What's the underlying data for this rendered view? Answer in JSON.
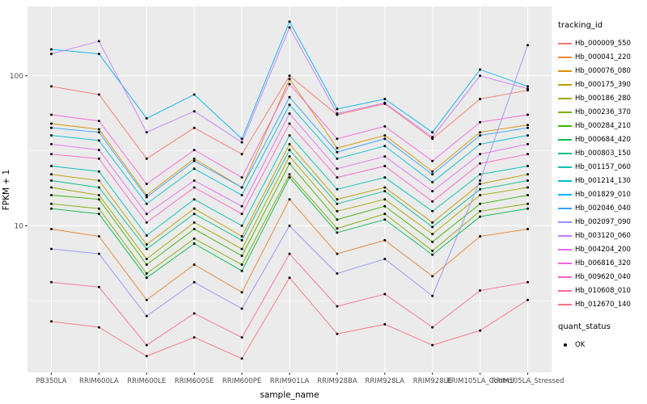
{
  "figure": {
    "background": "#FFFFFF",
    "panel_color": "#EBEBEB",
    "grid_major_color": "#FFFFFF",
    "grid_minor_color": "#FFFFFF",
    "tick_color": "#333333",
    "tick_label_color": "#4D4D4D",
    "point_color": "#000000"
  },
  "chart_data": {
    "type": "line",
    "x_label": "sample_name",
    "y_label": "FPKM + 1",
    "y_scale": "log10",
    "ylim": [
      1.05,
      290
    ],
    "y_ticks": [
      10,
      100
    ],
    "y_minor": [
      3.162,
      31.62
    ],
    "legend_title": "tracking_id",
    "quant_legend_title": "quant_status",
    "quant_items": [
      "OK"
    ],
    "legend_position": "right",
    "grid": true,
    "categories": [
      "PB350LA",
      "RRIM600LA",
      "RRIM600LE",
      "RRIM600SE",
      "RRIM600PE",
      "RRIM901LA",
      "RRIM928BA",
      "RRIM928LA",
      "RRIM928LE",
      "RRIM105LA_Control",
      "RRIM105LA_Stressed"
    ],
    "series": [
      {
        "name": "Hb_000009_550",
        "color": "#F8766D",
        "values": [
          85,
          75,
          28,
          45,
          30,
          100,
          55,
          65,
          38,
          70,
          80
        ]
      },
      {
        "name": "Hb_000041_220",
        "color": "#EA8331",
        "values": [
          9.5,
          8.5,
          3.2,
          5.5,
          3.6,
          15,
          6.5,
          8,
          4.6,
          8.5,
          9.5
        ]
      },
      {
        "name": "Hb_000076_080",
        "color": "#D89000",
        "values": [
          48,
          44,
          16,
          28,
          18,
          95,
          33,
          40,
          23,
          42,
          47
        ]
      },
      {
        "name": "Hb_000175_390",
        "color": "#C09B00",
        "values": [
          22,
          20,
          7.5,
          13,
          8.5,
          35,
          15,
          18,
          10.5,
          19,
          22
        ]
      },
      {
        "name": "Hb_000186_280",
        "color": "#A3A500",
        "values": [
          18,
          16,
          6,
          10.5,
          7,
          29,
          12.5,
          15,
          8.8,
          16,
          18
        ]
      },
      {
        "name": "Hb_000236_370",
        "color": "#7CAE00",
        "values": [
          14,
          13,
          4.8,
          8.2,
          5.5,
          22,
          9.6,
          12,
          6.8,
          12.5,
          14
        ]
      },
      {
        "name": "Hb_000284_210",
        "color": "#39B600",
        "values": [
          16,
          15,
          5.5,
          9.5,
          6.3,
          26,
          11,
          13.5,
          7.8,
          14,
          16
        ]
      },
      {
        "name": "Hb_000684_420",
        "color": "#00BB4E",
        "values": [
          13,
          12,
          4.5,
          7.6,
          5,
          21,
          9,
          11,
          6.4,
          11.5,
          13
        ]
      },
      {
        "name": "Hb_000803_150",
        "color": "#00C087",
        "values": [
          20,
          18,
          7,
          12,
          8,
          32,
          14,
          17,
          9.8,
          17.5,
          20
        ]
      },
      {
        "name": "Hb_001157_060",
        "color": "#00C0B2",
        "values": [
          25,
          23,
          8.6,
          15,
          10,
          40,
          17.5,
          21,
          12.5,
          22,
          25
        ]
      },
      {
        "name": "Hb_001214_130",
        "color": "#00BDD8",
        "values": [
          40,
          37,
          14,
          24,
          16,
          64,
          28,
          34,
          19.5,
          35,
          40
        ]
      },
      {
        "name": "Hb_001829_010",
        "color": "#00B4F0",
        "values": [
          150,
          140,
          52,
          75,
          38,
          230,
          60,
          70,
          42,
          110,
          85
        ]
      },
      {
        "name": "Hb_002046_040",
        "color": "#35A2FF",
        "values": [
          45,
          42,
          15.5,
          27,
          18,
          72,
          31,
          38,
          22,
          40,
          45
        ]
      },
      {
        "name": "Hb_002097_090",
        "color": "#9590FF",
        "values": [
          7,
          6.5,
          2.5,
          4.2,
          2.8,
          10,
          4.8,
          6,
          3.4,
          20,
          160
        ]
      },
      {
        "name": "Hb_003120_060",
        "color": "#C77CFF",
        "values": [
          140,
          170,
          42,
          58,
          36,
          210,
          56,
          66,
          39,
          100,
          82
        ]
      },
      {
        "name": "Hb_004204_200",
        "color": "#E76BF3",
        "values": [
          35,
          32,
          12,
          20,
          13.5,
          56,
          24,
          29,
          17,
          30,
          35
        ]
      },
      {
        "name": "Hb_006816_320",
        "color": "#FA62DB",
        "values": [
          55,
          50,
          19,
          32,
          21,
          88,
          38,
          46,
          27,
          49,
          55
        ]
      },
      {
        "name": "Hb_009620_040",
        "color": "#FF61C7",
        "values": [
          30,
          28,
          10.5,
          18,
          12,
          48,
          21,
          25,
          14.5,
          26,
          30
        ]
      },
      {
        "name": "Hb_010608_010",
        "color": "#FF6A9A",
        "values": [
          4.2,
          3.9,
          1.6,
          2.6,
          1.8,
          6.5,
          2.9,
          3.5,
          2.1,
          3.7,
          4.2
        ]
      },
      {
        "name": "Hb_012670_140",
        "color": "#FC717F",
        "values": [
          2.3,
          2.1,
          1.35,
          1.8,
          1.3,
          4.5,
          1.9,
          2.2,
          1.6,
          2.0,
          3.2
        ]
      }
    ]
  }
}
